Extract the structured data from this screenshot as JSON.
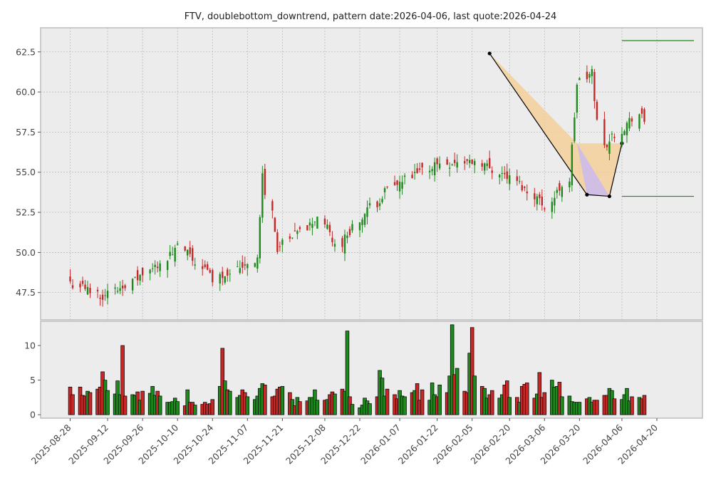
{
  "chart_data": {
    "type": "candlestick",
    "title": "FTV, doublebottom_downtrend, pattern date:2026-04-06, last quote:2026-04-24",
    "x_ticks": [
      "2025-08-28",
      "2025-09-12",
      "2025-09-26",
      "2025-10-10",
      "2025-10-24",
      "2025-11-07",
      "2025-11-21",
      "2025-12-08",
      "2025-12-22",
      "2026-01-07",
      "2026-01-22",
      "2026-02-05",
      "2026-02-20",
      "2026-03-06",
      "2026-03-20",
      "2026-04-06",
      "2026-04-20"
    ],
    "price_panel": {
      "ylim": [
        45.8,
        64.0
      ],
      "y_ticks": [
        "47.5",
        "50.0",
        "52.5",
        "55.0",
        "57.5",
        "60.0",
        "62.5"
      ],
      "grid": true
    },
    "volume_panel": {
      "ylim": [
        -0.5,
        13.5
      ],
      "y_ticks": [
        "0",
        "5",
        "10"
      ],
      "grid": false
    },
    "price_segments": [
      {
        "bars": 10,
        "from": 48.2,
        "to": 47.3
      },
      {
        "bars": 12,
        "from": 47.3,
        "to": 48.6
      },
      {
        "bars": 10,
        "from": 48.6,
        "to": 50.3
      },
      {
        "bars": 10,
        "from": 50.3,
        "to": 48.4
      },
      {
        "bars": 12,
        "from": 48.4,
        "to": 49.6
      },
      {
        "bars": 2,
        "from": 49.6,
        "to": 54.8
      },
      {
        "bars": 4,
        "from": 54.8,
        "to": 50.2
      },
      {
        "bars": 12,
        "from": 50.2,
        "to": 52.2
      },
      {
        "bars": 5,
        "from": 52.2,
        "to": 50.4
      },
      {
        "bars": 14,
        "from": 50.4,
        "to": 53.8
      },
      {
        "bars": 14,
        "from": 53.8,
        "to": 55.5
      },
      {
        "bars": 12,
        "from": 55.5,
        "to": 55.7
      },
      {
        "bars": 10,
        "from": 55.7,
        "to": 54.6
      },
      {
        "bars": 10,
        "from": 54.6,
        "to": 52.9
      },
      {
        "bars": 6,
        "from": 52.9,
        "to": 54.5
      },
      {
        "bars": 3,
        "from": 54.5,
        "to": 60.5
      },
      {
        "bars": 4,
        "from": 60.5,
        "to": 61.2
      },
      {
        "bars": 3,
        "from": 61.2,
        "to": 56.6
      },
      {
        "bars": 10,
        "from": 56.6,
        "to": 58.6
      },
      {
        "bars": 6,
        "from": 58.6,
        "to": 57.2
      },
      {
        "bars": 6,
        "from": 57.2,
        "to": 54.2
      },
      {
        "bars": 5,
        "from": 54.2,
        "to": 55.3
      },
      {
        "bars": 5,
        "from": 55.3,
        "to": 54.0
      },
      {
        "bars": 5,
        "from": 54.0,
        "to": 56.7
      },
      {
        "bars": 8,
        "from": 56.7,
        "to": 59.3
      },
      {
        "bars": 5,
        "from": 59.3,
        "to": 60.9
      }
    ],
    "volume_values": [
      4.0,
      2.9,
      4.0,
      2.8,
      2.7,
      3.4,
      3.2,
      3.7,
      4.0,
      6.2,
      5.0,
      3.5,
      3.0,
      4.9,
      2.9,
      10.0,
      2.7,
      2.9,
      2.8,
      3.3,
      2.1,
      3.4,
      3.1,
      4.1,
      2.8,
      3.4,
      2.7,
      1.8,
      1.8,
      1.9,
      2.4,
      1.9,
      1.3,
      3.6,
      1.8,
      1.8,
      1.4,
      1.5,
      1.8,
      1.5,
      1.6,
      2.2,
      4.1,
      9.6,
      4.9,
      3.6,
      3.4,
      2.5,
      2.8,
      3.6,
      3.2,
      2.6,
      2.2,
      2.7,
      3.8,
      4.5,
      4.3,
      2.6,
      2.7,
      3.7,
      4.0,
      4.1,
      3.2,
      2.2,
      1.3,
      2.5,
      1.9,
      2.0,
      2.5,
      2.5,
      3.6,
      2.1,
      2.1,
      2.2,
      2.9,
      3.3,
      3.0,
      3.7,
      3.4,
      12.1,
      2.6,
      1.5,
      1.0,
      1.4,
      2.4,
      2.0,
      1.6,
      2.6,
      6.4,
      5.3,
      2.7,
      3.7,
      2.9,
      2.3,
      3.5,
      2.7,
      2.6,
      3.2,
      3.5,
      4.5,
      2.1,
      3.6,
      2.1,
      4.6,
      2.9,
      2.6,
      4.3,
      3.2,
      5.6,
      13.0,
      5.8,
      6.7,
      3.4,
      3.2,
      8.9,
      12.6,
      5.6,
      4.1,
      3.8,
      2.4,
      2.9,
      3.5,
      2.4,
      2.9,
      4.3,
      4.9,
      2.5,
      2.5,
      1.8,
      4.1,
      4.4,
      4.6,
      2.4,
      3.0,
      6.1,
      2.5,
      3.2,
      5.0,
      4.0,
      4.1,
      4.7,
      2.6,
      2.7,
      1.9,
      1.8,
      1.8,
      1.8,
      2.3,
      2.5,
      1.8,
      2.1,
      2.1,
      2.8,
      2.8,
      3.8,
      3.5,
      2.3,
      2.2,
      2.9,
      3.8,
      2.0,
      2.6,
      2.5,
      2.3,
      2.8
    ],
    "pattern": {
      "points": [
        {
          "date": "2026-02-12",
          "value": 62.4
        },
        {
          "date": "2026-03-23",
          "value": 53.6
        },
        {
          "date": "2026-04-01",
          "value": 53.5
        },
        {
          "date": "2026-04-06",
          "value": 56.8
        }
      ],
      "upper_band": [
        56.8,
        56.8
      ],
      "lower_band": [
        53.5,
        53.5
      ],
      "target_high": 63.2,
      "target_low": 53.5,
      "fill_color": "#f5cc8f",
      "inner_fill_color": "#c7b8f5",
      "target_line_color": "#1a8a1a"
    },
    "colors": {
      "up": "#1e8a1e",
      "down": "#c62828",
      "grid": "#b5b5b5",
      "panel_bg": "#ececec",
      "frame": "#bdbdbd"
    }
  }
}
